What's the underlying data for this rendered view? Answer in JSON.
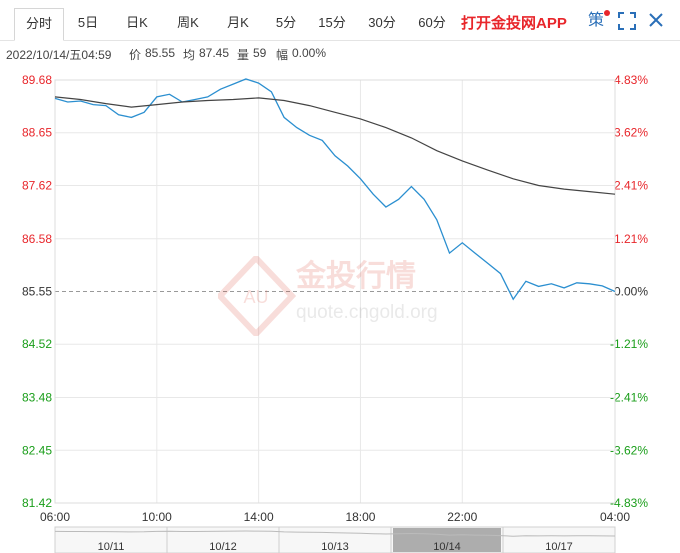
{
  "tabs": [
    {
      "label": "分时",
      "active": true
    },
    {
      "label": "5日"
    },
    {
      "label": "日K"
    },
    {
      "label": "周K"
    },
    {
      "label": "月K"
    },
    {
      "label": "5分"
    },
    {
      "label": "15分"
    },
    {
      "label": "30分"
    },
    {
      "label": "60分"
    }
  ],
  "promo_label": "打开金投网APP",
  "controls": {
    "strategy_label": "策",
    "fullscreen_icon": "fullscreen-icon",
    "close_icon": "close-icon"
  },
  "info": {
    "datetime": "2022/10/14/五04:59",
    "price_label": "价",
    "price": "85.55",
    "avg_label": "均",
    "avg": "87.45",
    "volume_label": "量",
    "volume": "59",
    "change_label": "幅",
    "change": "0.00%"
  },
  "watermark": {
    "cn": "金投行情",
    "url": "quote.cngold.org",
    "badge": "AU"
  },
  "colors": {
    "price_line": "#2b8fd0",
    "avg_line": "#444444",
    "up": "#e8262b",
    "down": "#1a9e1a",
    "flat": "#333333",
    "grid": "#e8e8e8"
  },
  "chart_data": {
    "type": "line",
    "baseline": 85.55,
    "ylim": [
      81.42,
      89.68
    ],
    "price_ticks": [
      "89.68",
      "88.65",
      "87.62",
      "86.58",
      "85.55",
      "84.52",
      "83.48",
      "82.45",
      "81.42"
    ],
    "pct_ticks": [
      "4.83%",
      "3.62%",
      "2.41%",
      "1.21%",
      "0.00%",
      "-1.21%",
      "-2.41%",
      "-3.62%",
      "-4.83%"
    ],
    "x_ticks": [
      "06:00",
      "10:00",
      "14:00",
      "18:00",
      "22:00",
      "04:00"
    ],
    "x_tick_hours": [
      0,
      4,
      8,
      12,
      16,
      22
    ],
    "x_range_hours": [
      0,
      22
    ],
    "series": [
      {
        "role": "price",
        "x": [
          0.0,
          0.5,
          1.0,
          1.5,
          2.0,
          2.5,
          3.0,
          3.5,
          4.0,
          4.5,
          5.0,
          5.5,
          6.0,
          6.5,
          7.0,
          7.5,
          8.0,
          8.5,
          9.0,
          9.5,
          10.0,
          10.5,
          11.0,
          11.5,
          12.0,
          12.5,
          13.0,
          13.5,
          14.0,
          14.5,
          15.0,
          15.5,
          16.0,
          16.5,
          17.0,
          17.5,
          18.0,
          18.5,
          19.0,
          19.5,
          20.0,
          20.5,
          21.0,
          21.5,
          22.0
        ],
        "y": [
          89.32,
          89.25,
          89.27,
          89.2,
          89.18,
          89.0,
          88.95,
          89.05,
          89.35,
          89.4,
          89.25,
          89.3,
          89.35,
          89.5,
          89.6,
          89.7,
          89.62,
          89.45,
          88.95,
          88.75,
          88.6,
          88.5,
          88.2,
          88.0,
          87.75,
          87.45,
          87.2,
          87.35,
          87.6,
          87.35,
          86.95,
          86.3,
          86.5,
          86.3,
          86.1,
          85.9,
          85.4,
          85.75,
          85.65,
          85.7,
          85.62,
          85.72,
          85.7,
          85.66,
          85.55
        ]
      },
      {
        "role": "average",
        "x": [
          0,
          1,
          2,
          3,
          4,
          5,
          6,
          7,
          8,
          9,
          10,
          11,
          12,
          13,
          14,
          15,
          16,
          17,
          18,
          19,
          20,
          21,
          22
        ],
        "y": [
          89.35,
          89.3,
          89.22,
          89.15,
          89.2,
          89.25,
          89.28,
          89.3,
          89.33,
          89.28,
          89.18,
          89.05,
          88.92,
          88.75,
          88.55,
          88.3,
          88.1,
          87.92,
          87.75,
          87.62,
          87.55,
          87.5,
          87.45
        ]
      }
    ],
    "navigator": {
      "labels": [
        "10/11",
        "10/12",
        "10/13",
        "10/14",
        "10/17"
      ],
      "selected": "10/14"
    }
  }
}
